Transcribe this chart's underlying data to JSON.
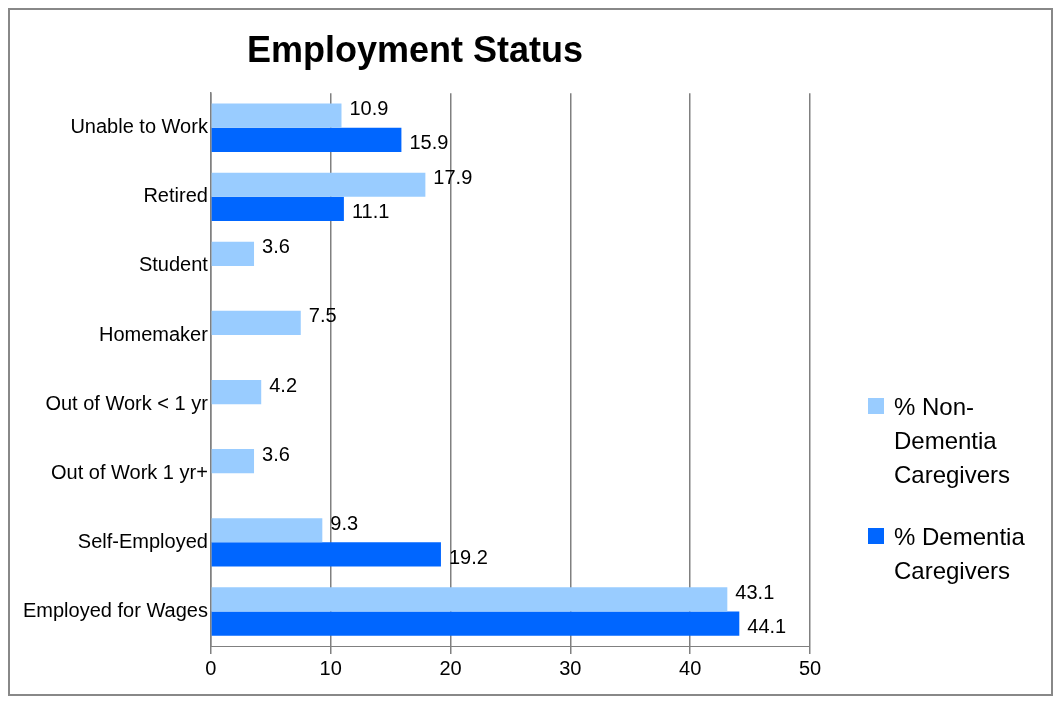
{
  "chart_data": {
    "type": "bar",
    "title": "Employment Status",
    "orientation": "horizontal",
    "categories": [
      "Unable to Work",
      "Retired",
      "Student",
      "Homemaker",
      "Out of Work < 1 yr",
      "Out of Work 1 yr+",
      "Self-Employed",
      "Employed for Wages"
    ],
    "series": [
      {
        "name": "% Non-Dementia Caregivers",
        "color": "#99ccff",
        "values": [
          10.9,
          17.9,
          3.6,
          7.5,
          4.2,
          3.6,
          9.3,
          43.1
        ]
      },
      {
        "name": "% Dementia Caregivers",
        "color": "#0066ff",
        "values": [
          15.9,
          11.1,
          null,
          null,
          null,
          null,
          19.2,
          44.1
        ]
      }
    ],
    "xlim": [
      0,
      50
    ],
    "xticks": [
      0,
      10,
      20,
      30,
      40,
      50
    ],
    "grid": "x",
    "legend": "right",
    "data_labels": true
  }
}
